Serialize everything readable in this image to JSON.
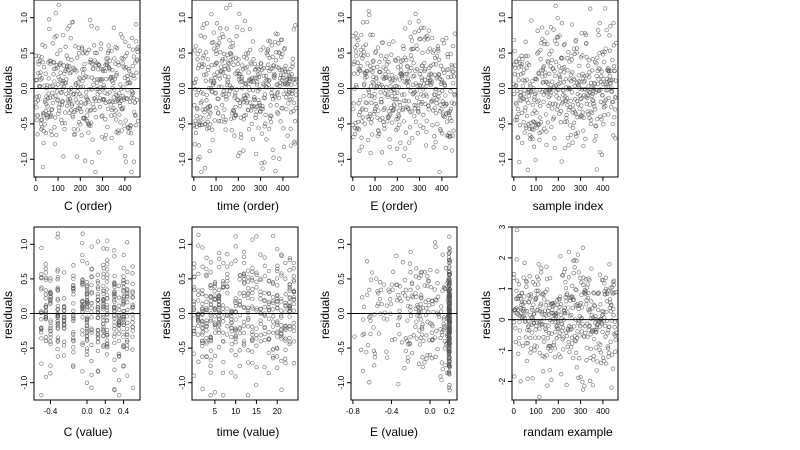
{
  "colors": {
    "points": "#555555",
    "frame": "#000000",
    "refline": "#000000"
  },
  "chart_data": [
    {
      "type": "scatter",
      "xlabel": "C (order)",
      "ylabel": "residuals",
      "xlim": [
        -8,
        468
      ],
      "ylim": [
        -1.25,
        1.25
      ],
      "xticks": [
        0,
        100,
        200,
        300,
        400
      ],
      "yticks": [
        -1.0,
        -0.5,
        0.0,
        0.5,
        1.0
      ],
      "xtick_labels": [
        "0",
        "100",
        "200",
        "300",
        "400"
      ],
      "ytick_labels": [
        "-1.0",
        "-0.5",
        "0.0",
        "0.5",
        "1.0"
      ],
      "refline_y": 0,
      "pattern": "order",
      "seed": 11
    },
    {
      "type": "scatter",
      "xlabel": "time (order)",
      "ylabel": "residuals",
      "xlim": [
        -8,
        468
      ],
      "ylim": [
        -1.25,
        1.25
      ],
      "xticks": [
        0,
        100,
        200,
        300,
        400
      ],
      "yticks": [
        -1.0,
        -0.5,
        0.0,
        0.5,
        1.0
      ],
      "xtick_labels": [
        "0",
        "100",
        "200",
        "300",
        "400"
      ],
      "ytick_labels": [
        "-1.0",
        "-0.5",
        "0.0",
        "0.5",
        "1.0"
      ],
      "refline_y": 0,
      "pattern": "order",
      "seed": 23
    },
    {
      "type": "scatter",
      "xlabel": "E (order)",
      "ylabel": "residuals",
      "xlim": [
        -8,
        468
      ],
      "ylim": [
        -1.25,
        1.25
      ],
      "xticks": [
        0,
        100,
        200,
        300,
        400
      ],
      "yticks": [
        -1.0,
        -0.5,
        0.0,
        0.5,
        1.0
      ],
      "xtick_labels": [
        "0",
        "100",
        "200",
        "300",
        "400"
      ],
      "ytick_labels": [
        "-1.0",
        "-0.5",
        "0.0",
        "0.5",
        "1.0"
      ],
      "refline_y": 0,
      "pattern": "order",
      "seed": 37
    },
    {
      "type": "scatter",
      "xlabel": "sample index",
      "ylabel": "residuals",
      "xlim": [
        -8,
        468
      ],
      "ylim": [
        -1.25,
        1.25
      ],
      "xticks": [
        0,
        100,
        200,
        300,
        400
      ],
      "yticks": [
        -1.0,
        -0.5,
        0.0,
        0.5,
        1.0
      ],
      "xtick_labels": [
        "0",
        "100",
        "200",
        "300",
        "400"
      ],
      "ytick_labels": [
        "-1.0",
        "-0.5",
        "0.0",
        "0.5",
        "1.0"
      ],
      "refline_y": 0,
      "pattern": "order",
      "seed": 41
    },
    {
      "type": "scatter",
      "xlabel": "C (value)",
      "ylabel": "residuals",
      "xlim": [
        -0.58,
        0.58
      ],
      "ylim": [
        -1.25,
        1.25
      ],
      "xticks": [
        -0.4,
        0.0,
        0.2,
        0.4
      ],
      "yticks": [
        -1.0,
        -0.5,
        0.0,
        0.5,
        1.0
      ],
      "xtick_labels": [
        "-0.4",
        "0.0",
        "0.2",
        "0.4"
      ],
      "ytick_labels": [
        "-1.0",
        "-0.5",
        "0.0",
        "0.5",
        "1.0"
      ],
      "refline_y": 0,
      "pattern": "columns",
      "columns": [
        -0.5,
        -0.45,
        -0.4,
        -0.32,
        -0.25,
        -0.15,
        -0.05,
        0.0,
        0.05,
        0.12,
        0.18,
        0.22,
        0.3,
        0.35,
        0.4,
        0.44,
        0.5
      ],
      "seed": 53
    },
    {
      "type": "scatter",
      "xlabel": "time (value)",
      "ylabel": "residuals",
      "xlim": [
        -0.5,
        25
      ],
      "ylim": [
        -1.25,
        1.25
      ],
      "xticks": [
        5,
        10,
        15,
        20
      ],
      "yticks": [
        -1.0,
        -0.5,
        0.0,
        0.5,
        1.0
      ],
      "xtick_labels": [
        "5",
        "10",
        "15",
        "20"
      ],
      "ytick_labels": [
        "-1.0",
        "-0.5",
        "0.0",
        "0.5",
        "1.0"
      ],
      "refline_y": 0,
      "pattern": "columns",
      "columns": [
        0,
        1,
        2,
        3,
        4,
        5,
        6,
        7,
        8,
        9,
        10,
        11,
        12,
        13,
        14,
        15,
        16,
        17,
        18,
        19,
        20,
        21,
        22,
        23,
        24
      ],
      "seed": 67
    },
    {
      "type": "scatter",
      "xlabel": "E (value)",
      "ylabel": "residuals",
      "xlim": [
        -0.82,
        0.28
      ],
      "ylim": [
        -1.25,
        1.25
      ],
      "xticks": [
        -0.8,
        -0.4,
        0.0,
        0.2
      ],
      "yticks": [
        -1.0,
        -0.5,
        0.0,
        0.5,
        1.0
      ],
      "xtick_labels": [
        "-0.8",
        "-0.4",
        "0.0",
        "0.2"
      ],
      "ytick_labels": [
        "-1.0",
        "-0.5",
        "0.0",
        "0.5",
        "1.0"
      ],
      "refline_y": 0,
      "pattern": "skewed",
      "seed": 79
    },
    {
      "type": "scatter",
      "xlabel": "randam example",
      "ylabel": "residuals",
      "xlim": [
        -8,
        468
      ],
      "ylim": [
        -2.6,
        3.0
      ],
      "xticks": [
        0,
        100,
        200,
        300,
        400
      ],
      "yticks": [
        -2,
        -1,
        0,
        1,
        2,
        3
      ],
      "xtick_labels": [
        "0",
        "100",
        "200",
        "300",
        "400"
      ],
      "ytick_labels": [
        "-2",
        "-1",
        "0",
        "1",
        "2",
        "3"
      ],
      "refline_y": 0,
      "pattern": "normal",
      "seed": 97
    }
  ]
}
